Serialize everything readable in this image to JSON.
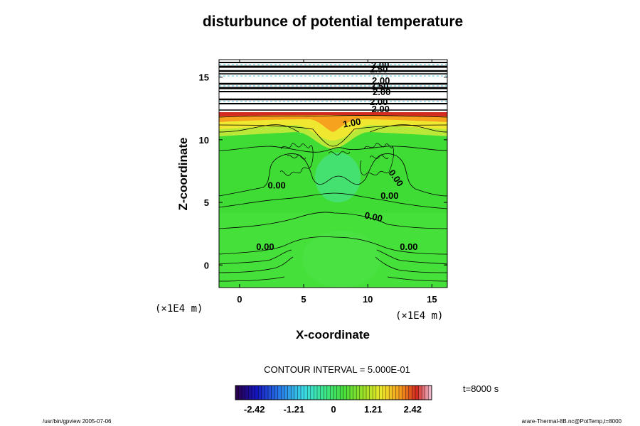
{
  "chart_data": {
    "type": "heatmap",
    "title": "disturbunce of potential temperature",
    "xlabel": "X-coordinate",
    "ylabel": "Z-coordinate",
    "x_unit": "(×1E4 m)",
    "y_unit": "(×1E4 m)",
    "xlim": [
      -1.6,
      16.2
    ],
    "ylim": [
      -1.8,
      16.4
    ],
    "x_ticks": [
      0,
      5,
      10,
      15
    ],
    "y_ticks": [
      0,
      5,
      10,
      15
    ],
    "contour_interval_text": "CONTOUR INTERVAL = 5.000E-01",
    "time_text": "t=8000 s",
    "colorbar": {
      "ticks": [
        -2.42,
        -1.21,
        0,
        1.21,
        2.42
      ],
      "tick_labels": [
        "-2.42",
        "-1.21",
        "0",
        "1.21",
        "2.42"
      ],
      "range": [
        -3.0,
        3.0
      ]
    },
    "contour_labels": [
      {
        "text": "1.00",
        "x": 8.8,
        "z": 11.1
      },
      {
        "text": "2.00",
        "x": 11.0,
        "z": 12.2
      },
      {
        "text": "0.00",
        "x": 2.9,
        "z": 6.1
      },
      {
        "text": "0.00",
        "x": 12.0,
        "z": 6.8
      },
      {
        "text": "0.00",
        "x": 11.7,
        "z": 5.3
      },
      {
        "text": "0.00",
        "x": 10.4,
        "z": 3.6
      },
      {
        "text": "0.00",
        "x": 2.0,
        "z": 1.2
      },
      {
        "text": "0.00",
        "x": 13.2,
        "z": 1.2
      }
    ],
    "grid": false,
    "colorbar_placement": "bottom"
  },
  "footer": {
    "left": "/usr/bin/gpview 2005-07-06",
    "right": "arare-Thermal-8B.nc@PotTemp,t=8000"
  },
  "colors": {
    "background_field": "#3fdc35",
    "warm_top": "#d42a1f",
    "frame": "#000000"
  }
}
